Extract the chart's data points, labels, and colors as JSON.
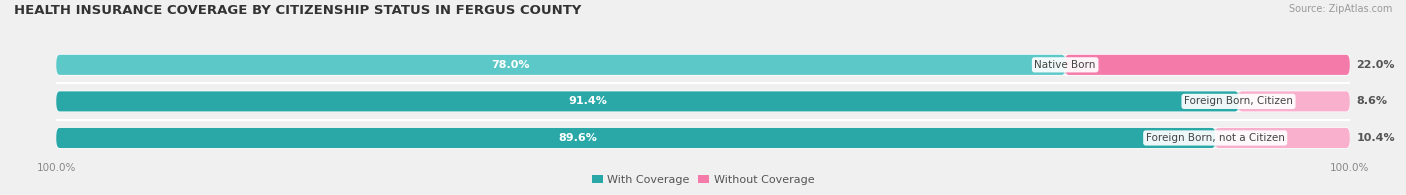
{
  "title": "HEALTH INSURANCE COVERAGE BY CITIZENSHIP STATUS IN FERGUS COUNTY",
  "source": "Source: ZipAtlas.com",
  "categories": [
    "Native Born",
    "Foreign Born, Citizen",
    "Foreign Born, not a Citizen"
  ],
  "with_coverage": [
    78.0,
    91.4,
    89.6
  ],
  "without_coverage": [
    22.0,
    8.6,
    10.4
  ],
  "color_with": "#5dc8c8",
  "color_with_dark": "#2aa8a8",
  "color_without": "#f47aaa",
  "color_without_light": "#f9b0cc",
  "background_color": "#f0f0f0",
  "bar_background": "#e0e0e0",
  "title_fontsize": 9.5,
  "label_fontsize": 8.0,
  "tick_fontsize": 7.5,
  "legend_fontsize": 8.0,
  "source_fontsize": 7.0,
  "cat_label_fontsize": 7.5
}
